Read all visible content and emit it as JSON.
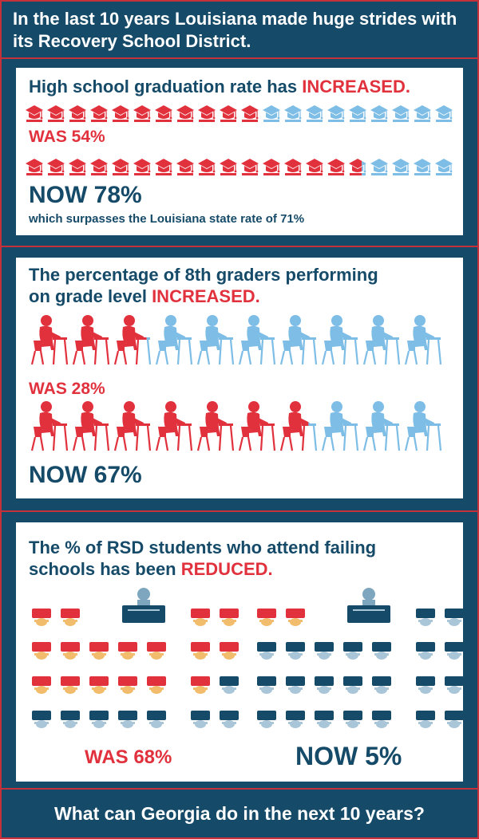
{
  "header": {
    "title": "In the last 10 years Louisiana made huge strides with its Recovery School District."
  },
  "graduation": {
    "title_prefix": "High school graduation rate has ",
    "title_emph": "INCREASED.",
    "was_label": "WAS 54%",
    "now_label": "NOW 78%",
    "note": "which surpasses the Louisiana state rate of 71%"
  },
  "eighth": {
    "title_line1": "The percentage of 8th graders performing",
    "title_line2_prefix": "on grade level ",
    "title_emph": "INCREASED.",
    "was_label": "WAS 28%",
    "now_label": "NOW 67%"
  },
  "failing": {
    "title_line1": "The % of RSD students who attend failing",
    "title_line2_prefix": "schools has been ",
    "title_emph": "REDUCED.",
    "was_label": "WAS 68%",
    "now_label": "NOW 5%"
  },
  "footer": {
    "text": "What can Georgia do in the next 10 years?"
  },
  "colors": {
    "red": "#e1313d",
    "lightblue": "#7dbde6",
    "navy": "#154a68",
    "border": "#c5313b"
  },
  "chart_data": [
    {
      "type": "pictogram",
      "icon": "graduation-cap-icon",
      "title": "High school graduation rate has INCREASED.",
      "categories": [
        "Was",
        "Now"
      ],
      "values": [
        54,
        78
      ],
      "unit": "%",
      "reference": {
        "label": "Louisiana state rate",
        "value": 71
      }
    },
    {
      "type": "pictogram",
      "icon": "student-at-desk-icon",
      "title": "The percentage of 8th graders performing on grade level INCREASED.",
      "categories": [
        "Was",
        "Now"
      ],
      "values": [
        28,
        67
      ],
      "unit": "%"
    },
    {
      "type": "pictogram",
      "icon": "classroom-desk-icon",
      "title": "The % of RSD students who attend failing schools has been REDUCED.",
      "categories": [
        "Was",
        "Now"
      ],
      "values": [
        68,
        5
      ],
      "unit": "%"
    }
  ]
}
